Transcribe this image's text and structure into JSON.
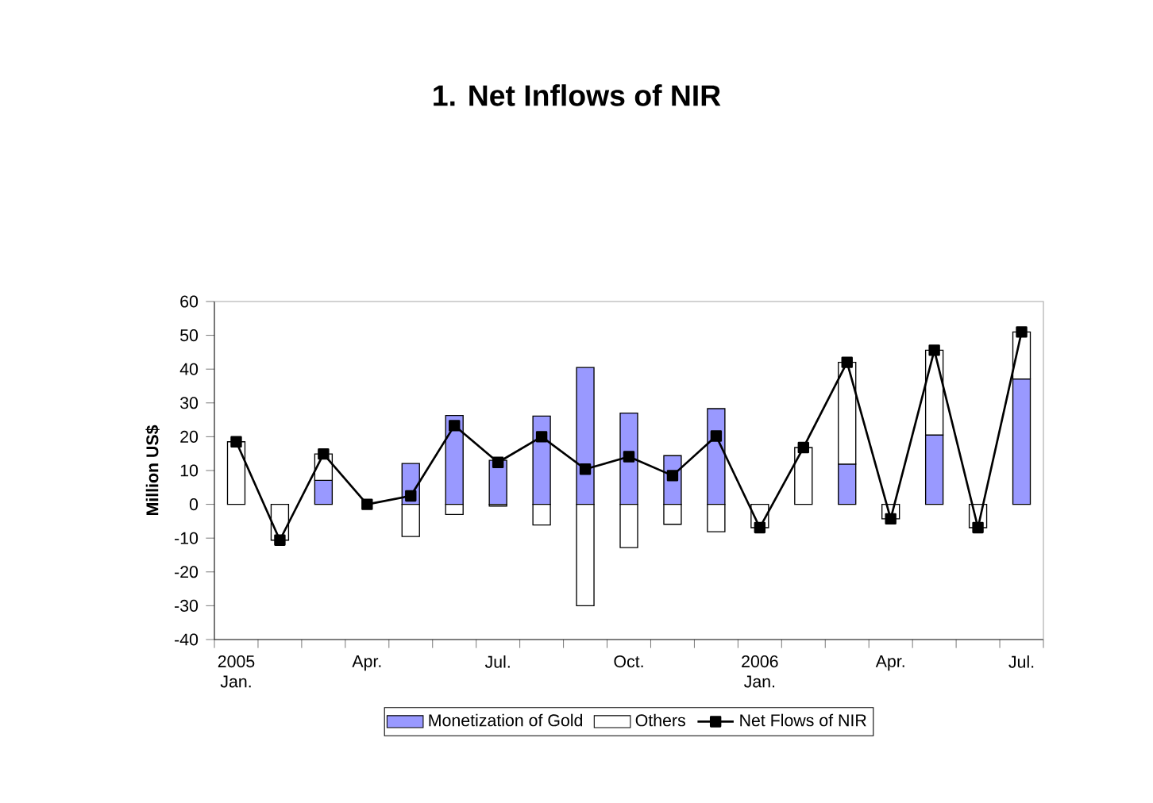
{
  "chart_data": {
    "type": "bar",
    "title": "1. Net Inflows of NIR",
    "ylabel": "Million US$",
    "categories": [
      "2005 Jan.",
      null,
      null,
      "Apr.",
      null,
      null,
      "Jul.",
      null,
      null,
      "Oct.",
      null,
      null,
      "2006 Jan.",
      null,
      null,
      "Apr.",
      null,
      null,
      "Jul."
    ],
    "stacked": true,
    "series": [
      {
        "name": "Monetization of Gold",
        "color": "#9999ff",
        "values": [
          0,
          0,
          7.1,
          0,
          12.1,
          26.3,
          13,
          26.1,
          40.5,
          27,
          14.4,
          28.3,
          0,
          0,
          11.9,
          0,
          20.5,
          0,
          37.1
        ]
      },
      {
        "name": "Others",
        "color": "#ffffff",
        "values": [
          18.5,
          -10.6,
          7.8,
          0,
          -9.5,
          -3,
          -0.5,
          -6.1,
          -30,
          -12.8,
          -5.9,
          -8.1,
          -6.9,
          16.8,
          30.1,
          -4.3,
          25.1,
          -6.9,
          13.9
        ]
      },
      {
        "name": "Net Flows of NIR",
        "type": "line",
        "color": "#000000",
        "marker": "square",
        "values": [
          18.5,
          -10.6,
          14.9,
          0,
          2.5,
          23.3,
          12.4,
          20,
          10.4,
          14.1,
          8.5,
          20.2,
          -6.9,
          16.8,
          42,
          -4.3,
          45.6,
          -6.9,
          51
        ]
      }
    ],
    "ylim": [
      -40,
      60
    ],
    "yticks": [
      -40,
      -30,
      -20,
      -10,
      0,
      10,
      20,
      30,
      40,
      50,
      60
    ],
    "legend": "bottom",
    "grid": false
  }
}
